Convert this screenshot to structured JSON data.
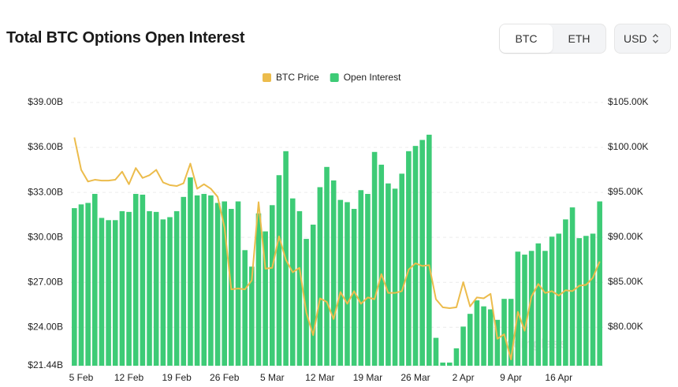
{
  "header": {
    "title": "Total BTC Options Open Interest",
    "toggle": [
      "BTC",
      "ETH"
    ],
    "currency": "USD"
  },
  "chart_data": {
    "type": "bar",
    "watermark": "coinglass",
    "categories": [
      null,
      "5 Feb",
      null,
      null,
      null,
      null,
      null,
      null,
      "12 Feb",
      null,
      null,
      null,
      null,
      null,
      null,
      "19 Feb",
      null,
      null,
      null,
      null,
      null,
      null,
      "26 Feb",
      null,
      null,
      null,
      null,
      null,
      null,
      "5 Mar",
      null,
      null,
      null,
      null,
      null,
      null,
      "12 Mar",
      null,
      null,
      null,
      null,
      null,
      null,
      "19 Mar",
      null,
      null,
      null,
      null,
      null,
      null,
      "26 Mar",
      null,
      null,
      null,
      null,
      null,
      null,
      "2 Apr",
      null,
      null,
      null,
      null,
      null,
      null,
      "9 Apr",
      null,
      null,
      null,
      null,
      null,
      null,
      "16 Apr",
      null,
      null,
      null,
      null,
      null,
      null
    ],
    "series": [
      {
        "name": "BTC Price",
        "type": "line",
        "axis": "y2",
        "color": "#ecbc4c",
        "values": [
          101.1,
          97.5,
          96.2,
          96.4,
          96.3,
          96.3,
          96.4,
          97.3,
          95.9,
          97.7,
          96.6,
          96.9,
          97.5,
          96.1,
          95.8,
          95.7,
          96.0,
          98.2,
          95.4,
          95.9,
          95.4,
          94.5,
          91.1,
          84.2,
          84.3,
          84.2,
          85.2,
          93.9,
          86.5,
          86.6,
          90.1,
          87.5,
          86.1,
          86.6,
          81.6,
          79.1,
          83.2,
          82.8,
          80.9,
          83.9,
          82.6,
          84.0,
          82.6,
          83.3,
          83.1,
          85.9,
          83.8,
          83.8,
          84.0,
          86.4,
          87.1,
          86.8,
          86.9,
          83.1,
          82.2,
          82.1,
          82.2,
          85.0,
          82.3,
          83.3,
          83.2,
          83.7,
          78.7,
          79.2,
          76.4,
          81.7,
          79.6,
          83.4,
          84.8,
          83.8,
          84.0,
          83.5,
          84.1,
          84.0,
          84.6,
          84.7,
          85.5,
          87.3
        ]
      },
      {
        "name": "Open Interest",
        "type": "bar",
        "color": "#3dcb76",
        "values": [
          31.95,
          32.2,
          32.3,
          32.9,
          31.3,
          31.15,
          31.15,
          31.75,
          31.7,
          32.9,
          32.85,
          31.75,
          31.7,
          31.2,
          31.35,
          31.75,
          32.7,
          34.0,
          32.8,
          32.9,
          32.8,
          32.3,
          32.4,
          31.9,
          32.4,
          29.15,
          28.05,
          31.6,
          30.4,
          32.15,
          34.15,
          35.75,
          32.6,
          31.75,
          29.9,
          30.85,
          33.35,
          34.7,
          33.8,
          32.5,
          32.35,
          31.9,
          33.15,
          32.9,
          35.7,
          34.85,
          33.6,
          33.25,
          34.25,
          35.75,
          36.1,
          36.5,
          36.85,
          23.3,
          21.65,
          21.65,
          22.6,
          24.05,
          24.9,
          25.8,
          25.4,
          25.2,
          24.5,
          25.9,
          25.9,
          29.05,
          28.85,
          29.1,
          29.6,
          29.1,
          30.05,
          30.25,
          31.2,
          32.0,
          29.95,
          30.1,
          30.25,
          32.4
        ]
      }
    ],
    "ylim": [
      21.44,
      39
    ],
    "yticks": [
      {
        "value": 21.44,
        "label": "$21.44B"
      },
      {
        "value": 24,
        "label": "$24.00B"
      },
      {
        "value": 27,
        "label": "$27.00B"
      },
      {
        "value": 30,
        "label": "$30.00B"
      },
      {
        "value": 33,
        "label": "$33.00B"
      },
      {
        "value": 36,
        "label": "$36.00B"
      },
      {
        "value": 39,
        "label": "$39.00B"
      }
    ],
    "y2lim": [
      75.7,
      105
    ],
    "y2ticks": [
      {
        "value": 80,
        "label": "$80.00K"
      },
      {
        "value": 85,
        "label": "$85.00K"
      },
      {
        "value": 90,
        "label": "$90.00K"
      },
      {
        "value": 95,
        "label": "$95.00K"
      },
      {
        "value": 100,
        "label": "$100.00K"
      },
      {
        "value": 105,
        "label": "$105.00K"
      }
    ],
    "grid": true,
    "legend": "top"
  }
}
